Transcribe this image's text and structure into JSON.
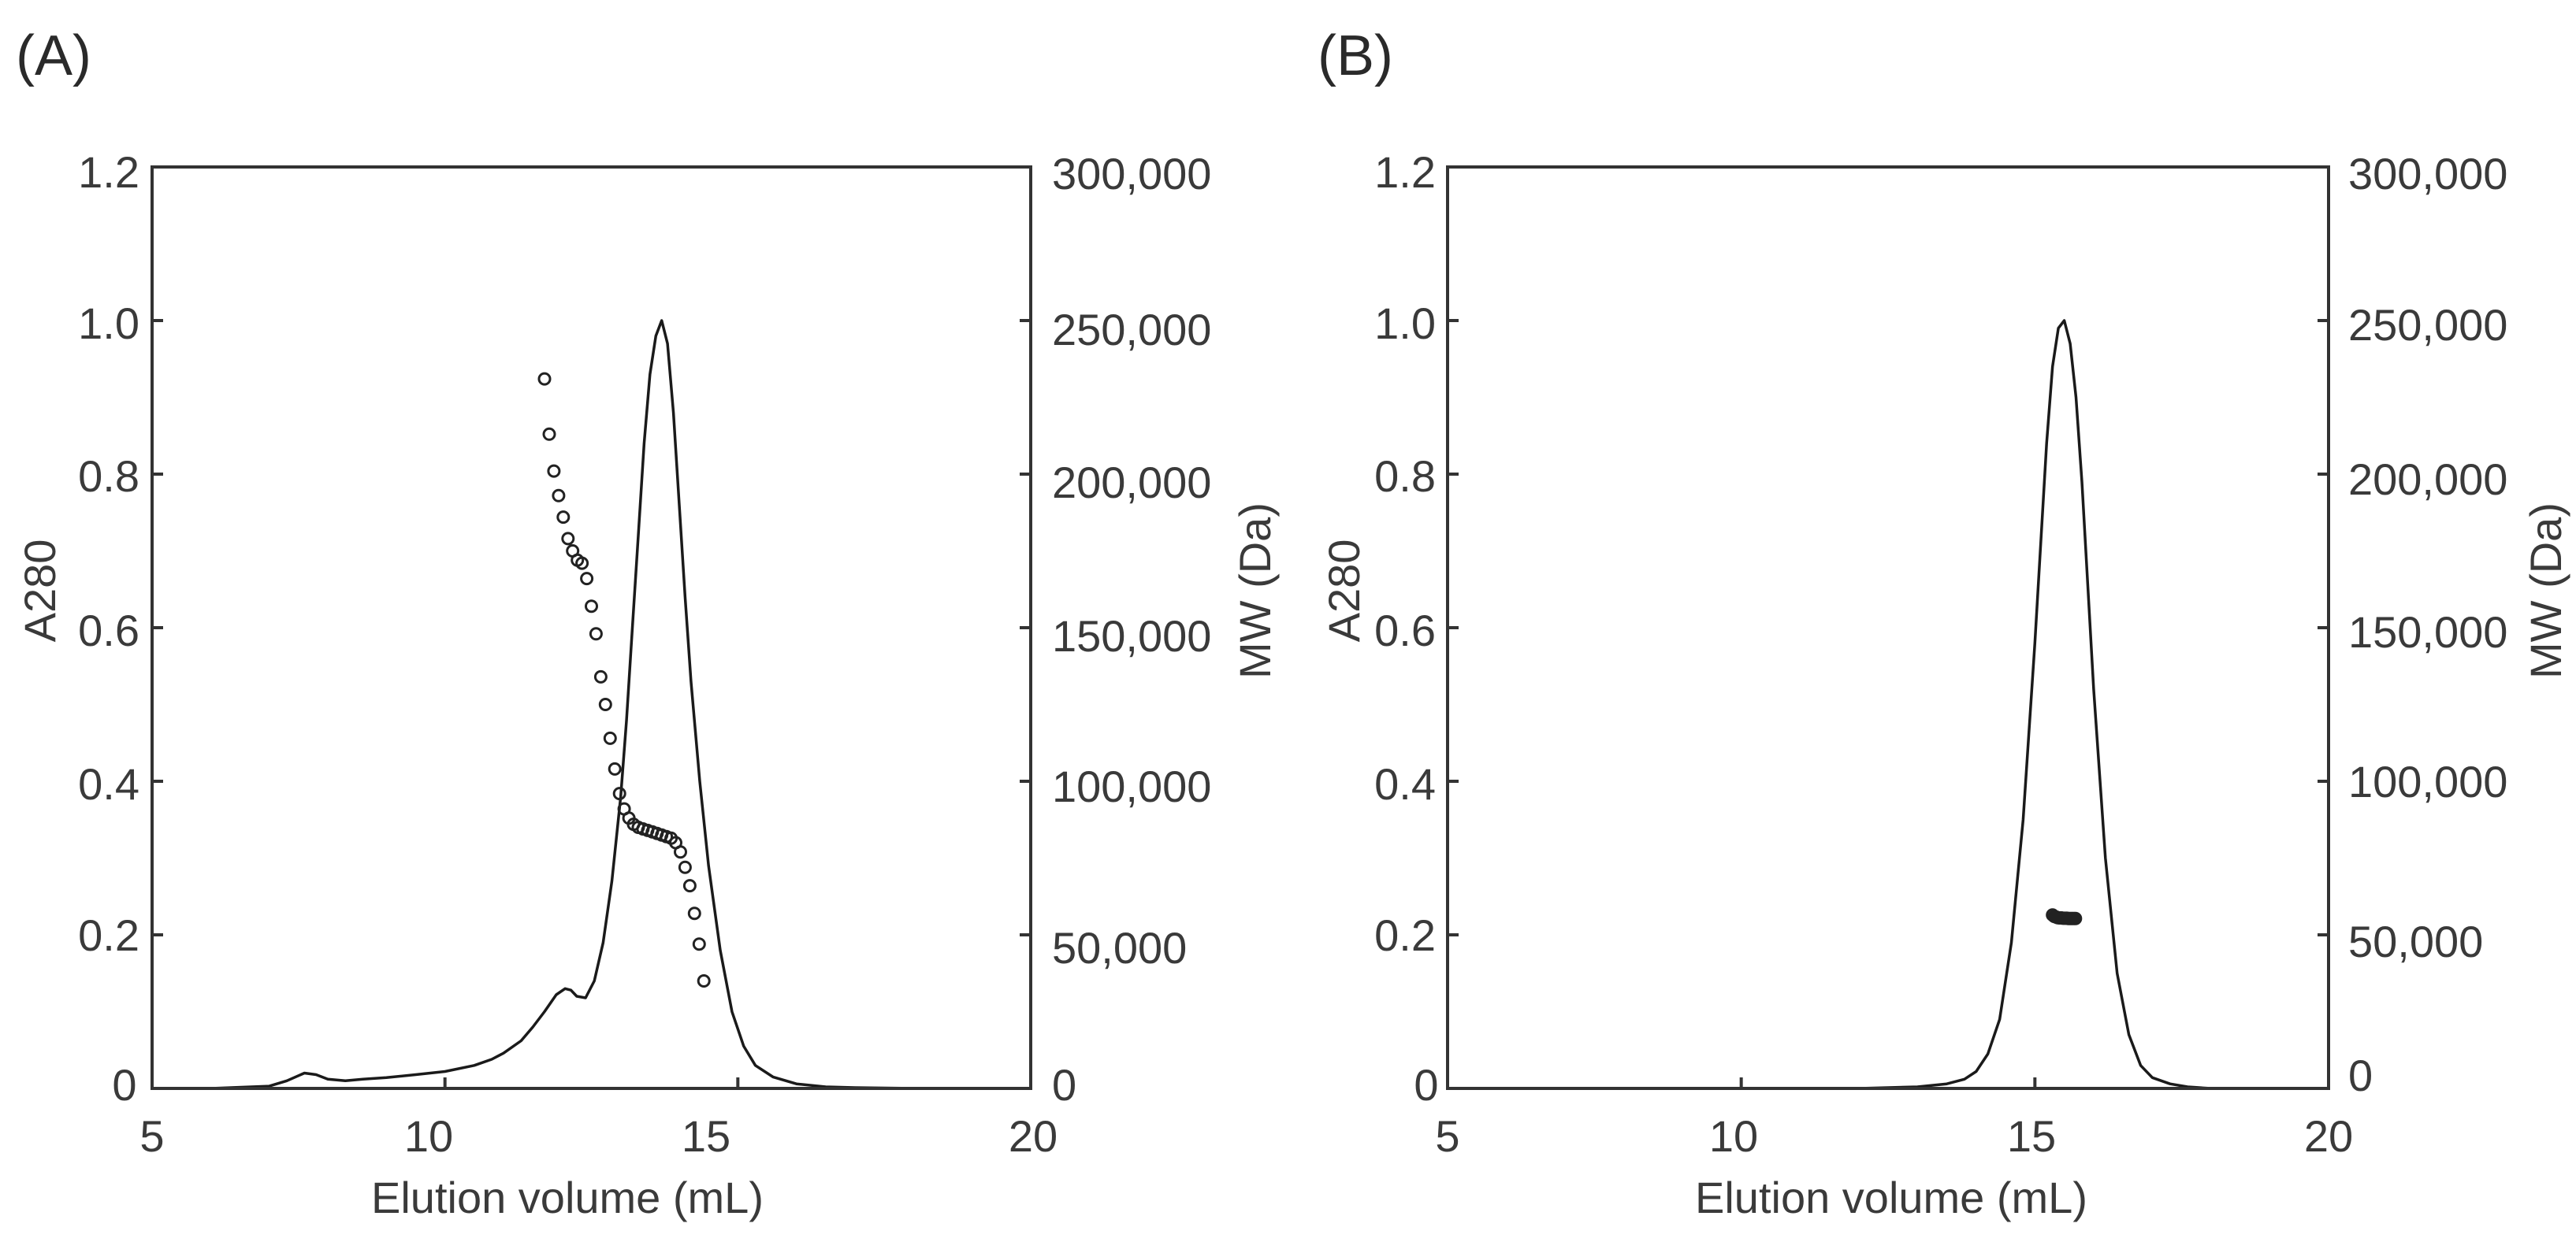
{
  "chart_data": [
    {
      "panel_label": "(A)",
      "type": "line",
      "xlabel": "Elution volume (mL)",
      "ylabel": "A280",
      "y2label": "MW (Da)",
      "xlim": [
        5,
        20
      ],
      "ylim": [
        0,
        1.2
      ],
      "y2lim": [
        0,
        300000
      ],
      "x_ticks": [
        "5",
        "10",
        "15",
        "20"
      ],
      "y_ticks": [
        "0",
        "0.2",
        "0.4",
        "0.6",
        "0.8",
        "1.0",
        "1.2"
      ],
      "y2_ticks": [
        "0",
        "50,000",
        "100,000",
        "150,000",
        "200,000",
        "250,000",
        "300,000"
      ],
      "grid": false,
      "series": [
        {
          "kind": "line",
          "axis": "left",
          "x": [
            5.0,
            6.0,
            7.0,
            7.3,
            7.6,
            7.8,
            8.0,
            8.3,
            8.6,
            9.0,
            9.5,
            10.0,
            10.5,
            10.8,
            11.0,
            11.3,
            11.5,
            11.7,
            11.9,
            12.05,
            12.15,
            12.25,
            12.4,
            12.55,
            12.7,
            12.85,
            13.0,
            13.1,
            13.2,
            13.3,
            13.4,
            13.5,
            13.6,
            13.7,
            13.8,
            13.9,
            14.0,
            14.1,
            14.2,
            14.35,
            14.5,
            14.7,
            14.9,
            15.1,
            15.3,
            15.6,
            16.0,
            16.5,
            17.0,
            18.0,
            19.0,
            20.0
          ],
          "y": [
            0.0,
            0.0,
            0.003,
            0.01,
            0.02,
            0.018,
            0.012,
            0.01,
            0.012,
            0.014,
            0.018,
            0.022,
            0.03,
            0.038,
            0.046,
            0.062,
            0.08,
            0.1,
            0.122,
            0.13,
            0.128,
            0.12,
            0.118,
            0.14,
            0.19,
            0.27,
            0.38,
            0.48,
            0.6,
            0.72,
            0.84,
            0.93,
            0.98,
            1.0,
            0.97,
            0.88,
            0.76,
            0.64,
            0.53,
            0.4,
            0.29,
            0.18,
            0.1,
            0.055,
            0.03,
            0.015,
            0.006,
            0.002,
            0.001,
            0.0,
            0.0,
            0.0
          ]
        },
        {
          "kind": "scatter",
          "axis": "right",
          "x": [
            11.7,
            11.78,
            11.86,
            11.94,
            12.02,
            12.1,
            12.18,
            12.26,
            12.34,
            12.42,
            12.5,
            12.58,
            12.66,
            12.74,
            12.82,
            12.9,
            12.98,
            13.06,
            13.14,
            13.22,
            13.3,
            13.38,
            13.46,
            13.54,
            13.62,
            13.7,
            13.78,
            13.86,
            13.94,
            14.02,
            14.1,
            14.18,
            14.26,
            14.34,
            14.42
          ],
          "y": [
            231000,
            213000,
            201000,
            193000,
            186000,
            179000,
            175000,
            172000,
            171000,
            166000,
            157000,
            148000,
            134000,
            125000,
            114000,
            104000,
            96000,
            91000,
            88000,
            86000,
            85000,
            84500,
            84000,
            83500,
            83000,
            82500,
            82000,
            81500,
            80000,
            77000,
            72000,
            66000,
            57000,
            47000,
            35000
          ]
        }
      ]
    },
    {
      "panel_label": "(B)",
      "type": "line",
      "xlabel": "Elution volume (mL)",
      "ylabel": "A280",
      "y2label": "MW (Da)",
      "xlim": [
        5,
        20
      ],
      "ylim": [
        0,
        1.2
      ],
      "y2lim": [
        0,
        300000
      ],
      "x_ticks": [
        "5",
        "10",
        "15",
        "20"
      ],
      "y_ticks": [
        "0",
        "0.2",
        "0.4",
        "0.6",
        "0.8",
        "1.0",
        "1.2"
      ],
      "y2_ticks": [
        "0",
        "50,000",
        "100,000",
        "150,000",
        "200,000",
        "250,000",
        "300,000"
      ],
      "grid": false,
      "series": [
        {
          "kind": "line",
          "axis": "left",
          "x": [
            5.0,
            7.0,
            9.0,
            11.0,
            12.0,
            13.0,
            13.5,
            13.8,
            14.0,
            14.2,
            14.4,
            14.6,
            14.8,
            15.0,
            15.2,
            15.3,
            15.4,
            15.5,
            15.6,
            15.7,
            15.8,
            16.0,
            16.2,
            16.4,
            16.6,
            16.8,
            17.0,
            17.3,
            17.6,
            18.0,
            19.0,
            20.0
          ],
          "y": [
            0.0,
            0.0,
            0.0,
            0.0,
            0.0,
            0.002,
            0.006,
            0.012,
            0.022,
            0.045,
            0.09,
            0.19,
            0.35,
            0.58,
            0.84,
            0.94,
            0.99,
            1.0,
            0.97,
            0.9,
            0.79,
            0.52,
            0.3,
            0.15,
            0.07,
            0.03,
            0.014,
            0.006,
            0.002,
            0.0,
            0.0,
            0.0
          ]
        },
        {
          "kind": "scatter",
          "axis": "right",
          "x": [
            15.3,
            15.33,
            15.36,
            15.39,
            15.42,
            15.45,
            15.48,
            15.51,
            15.54,
            15.57,
            15.6,
            15.63,
            15.66,
            15.69
          ],
          "y": [
            56500,
            56000,
            55800,
            55600,
            55500,
            55500,
            55400,
            55400,
            55400,
            55300,
            55300,
            55300,
            55300,
            55300
          ]
        }
      ]
    }
  ]
}
